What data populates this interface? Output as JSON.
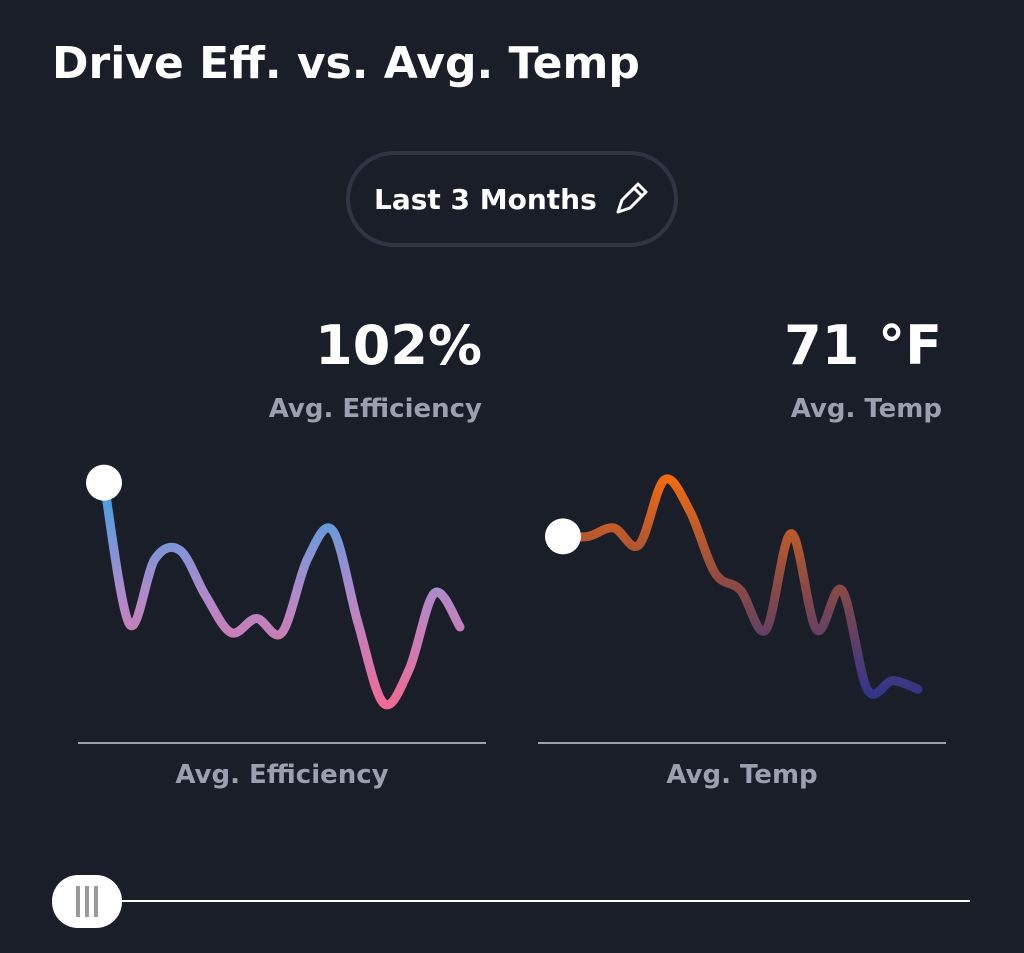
{
  "header": {
    "title": "Drive Eff. vs. Avg. Temp"
  },
  "period_button": {
    "label": "Last 3 Months"
  },
  "stats": [
    {
      "value": "102%",
      "label": "Avg. Efficiency"
    },
    {
      "value": "71 °F",
      "label": "Avg. Temp"
    }
  ],
  "chart_data": [
    {
      "type": "line",
      "x_label": "Avg. Efficiency",
      "ylim": [
        0,
        100
      ],
      "values": [
        92,
        42,
        65,
        68,
        52,
        39,
        44,
        39,
        65,
        75,
        42,
        14,
        26,
        53,
        41
      ],
      "colors": [
        "#3da2e4",
        "#b08acb",
        "#f06a94"
      ]
    },
    {
      "type": "line",
      "x_label": "Avg. Temp",
      "ylim": [
        0,
        100
      ],
      "values": [
        73,
        73,
        76,
        70,
        93,
        82,
        60,
        54,
        40,
        74,
        40,
        54,
        19,
        22,
        19
      ],
      "colors": [
        "#f06a12",
        "#8a4a45",
        "#33348a"
      ]
    }
  ]
}
